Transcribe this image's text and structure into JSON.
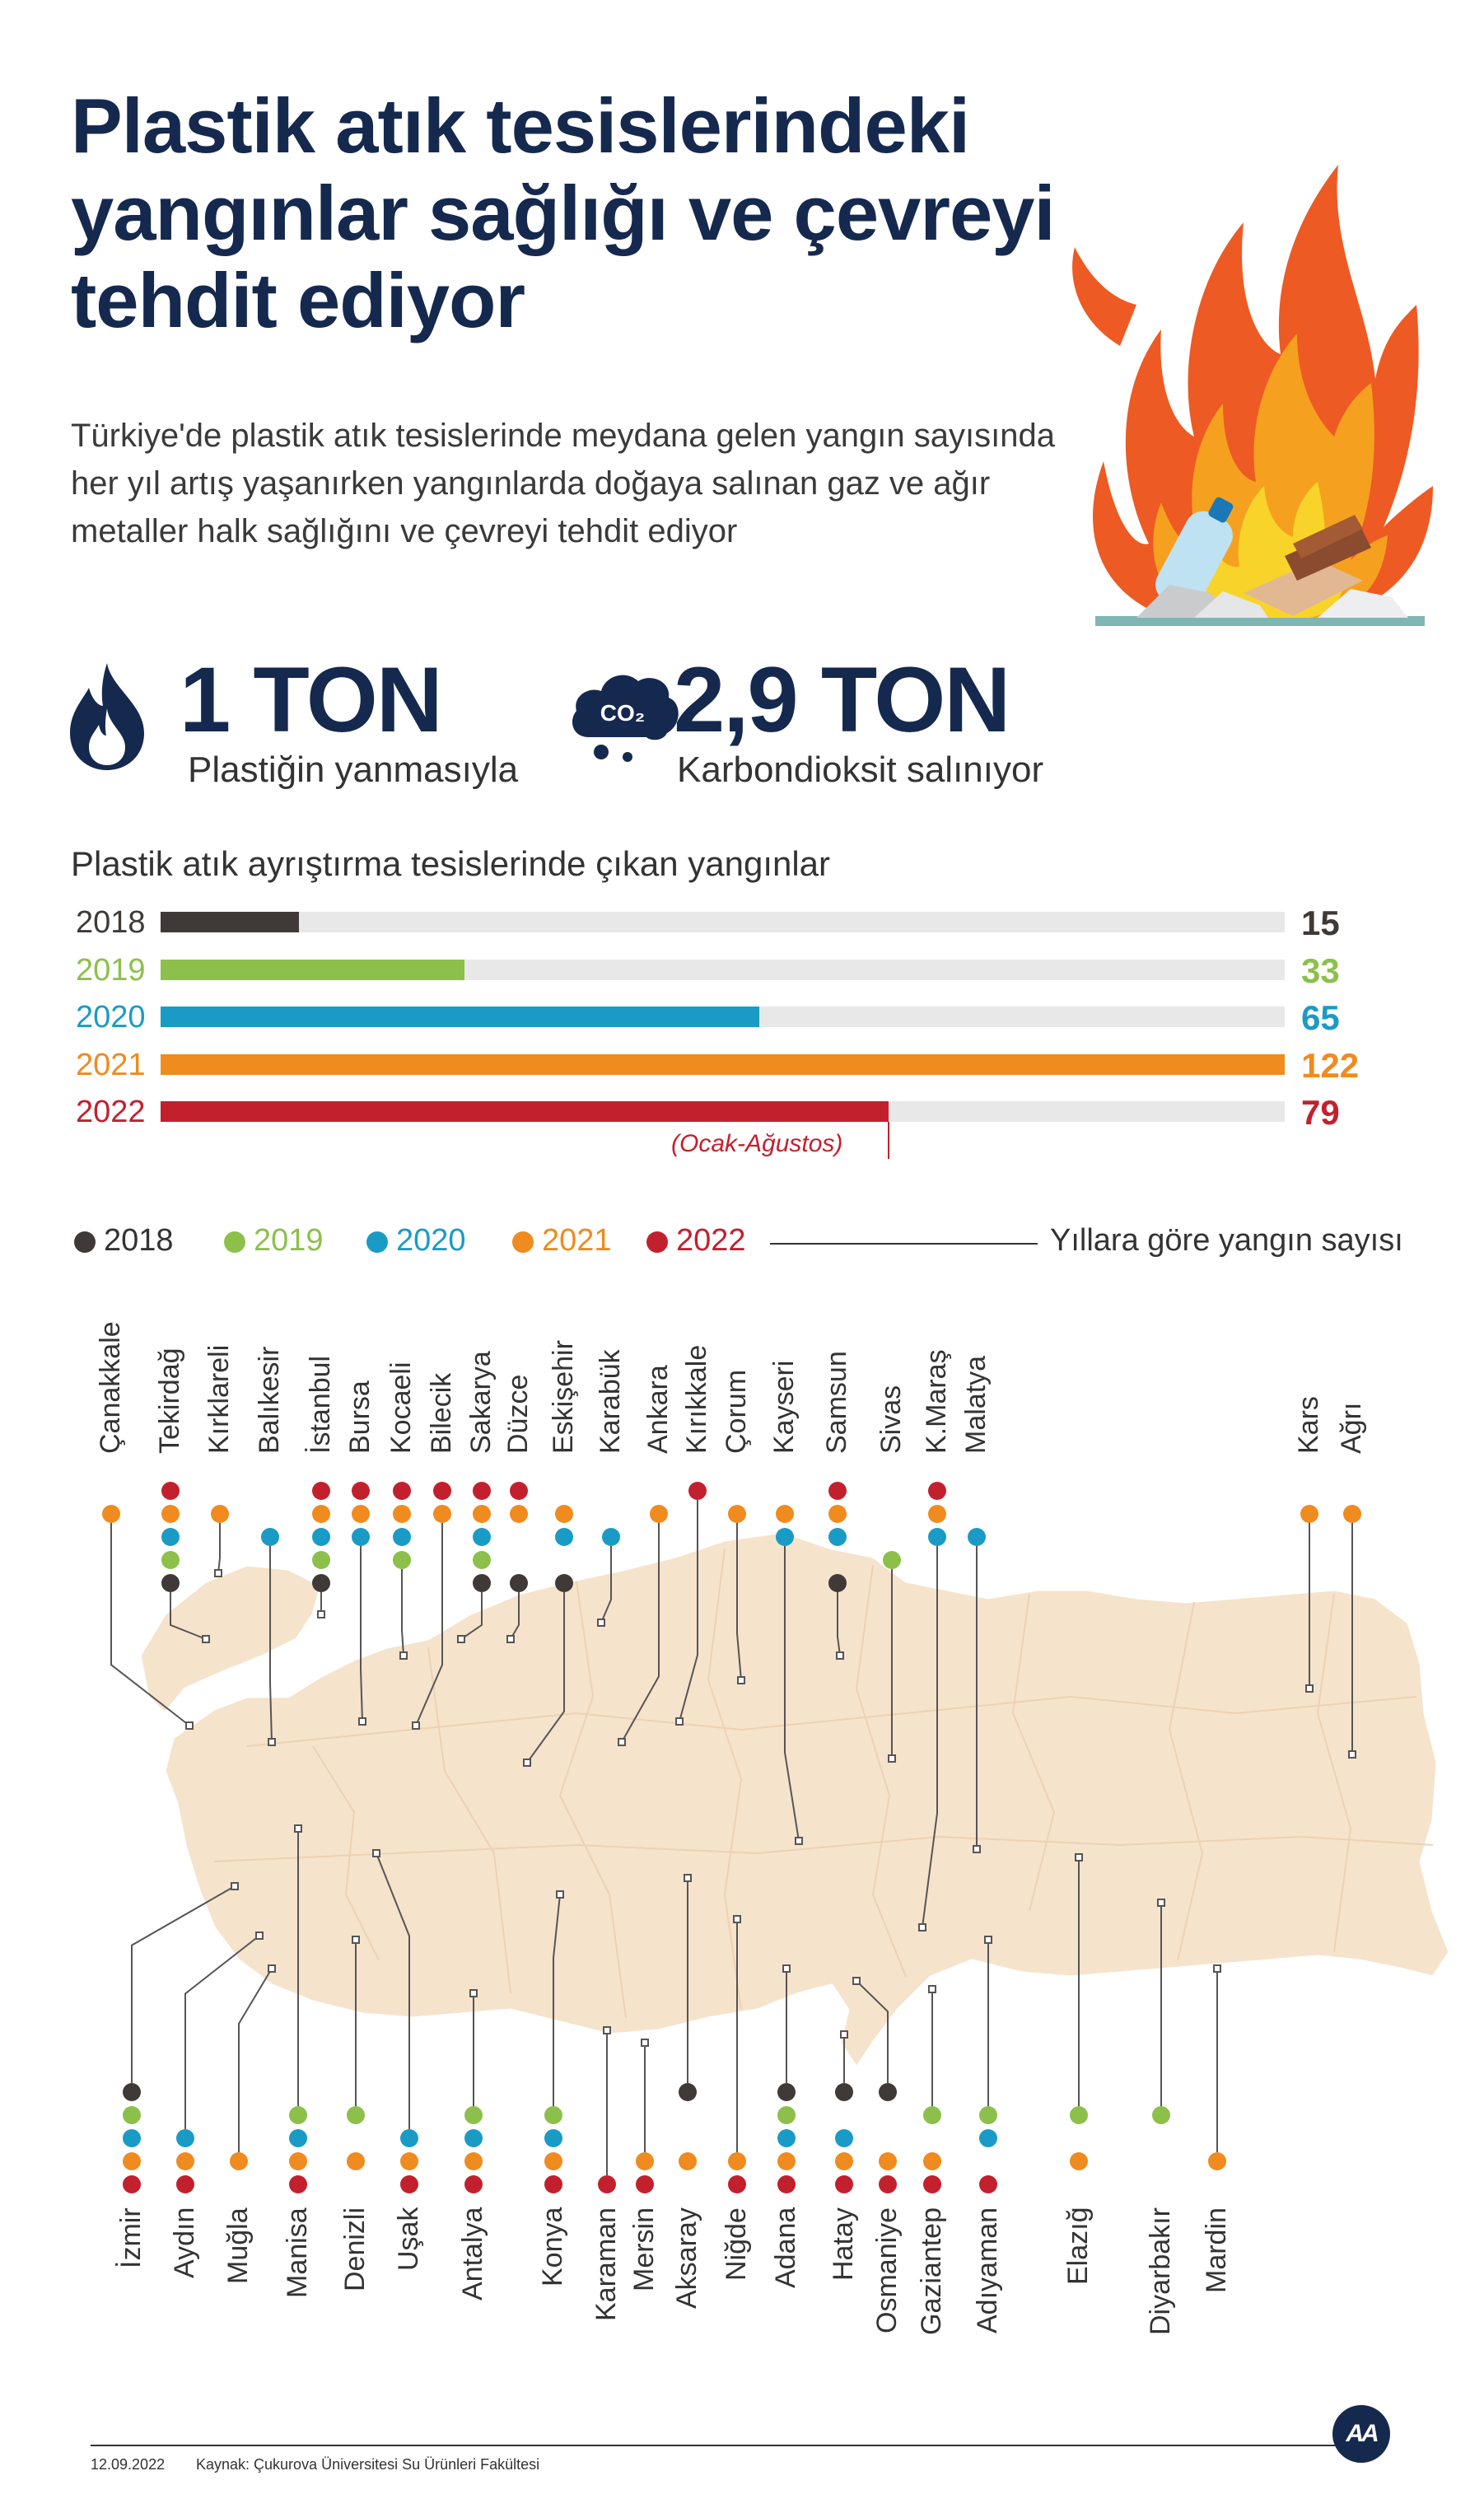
{
  "header": {
    "title_line1": "Plastik atık tesislerindeki",
    "title_line2": "yangınlar sağlığı ve çevreyi",
    "title_line3": "tehdit ediyor",
    "description": "Türkiye'de plastik atık tesislerinde meydana gelen yangın sayısında her yıl artış yaşanırken yangınlarda doğaya salınan gaz ve ağır metaller halk sağlığını ve çevreyi tehdit ediyor"
  },
  "stats": [
    {
      "value": "1 TON",
      "label": "Plastiğin yanmasıyla",
      "icon": "flame-icon"
    },
    {
      "value": "2,9 TON",
      "label": "Karbondioksit salınıyor",
      "icon": "co2-cloud-icon",
      "icon_text": "CO₂"
    }
  ],
  "colors": {
    "2018": "#3f3a38",
    "2019": "#8cc04b",
    "2020": "#1a9bc5",
    "2021": "#ef8b1f",
    "2022": "#c3202e",
    "track": "#e8e8e8",
    "title": "#15294f",
    "map": "#f6e3cc"
  },
  "chart_data": {
    "type": "bar",
    "title": "Plastik atık ayrıştırma tesislerinde çıkan yangınlar",
    "categories": [
      "2018",
      "2019",
      "2020",
      "2021",
      "2022"
    ],
    "values": [
      15,
      33,
      65,
      122,
      79
    ],
    "max": 122,
    "annotation": "(Ocak-Ağustos)"
  },
  "legend": {
    "years": [
      "2018",
      "2019",
      "2020",
      "2021",
      "2022"
    ],
    "label": "Yıllara göre yangın sayısı"
  },
  "map": {
    "top_provinces": [
      {
        "name": "Çanakkale",
        "years": [
          "2021"
        ]
      },
      {
        "name": "Tekirdağ",
        "years": [
          "2022",
          "2021",
          "2020",
          "2019",
          "2018"
        ]
      },
      {
        "name": "Kırklareli",
        "years": [
          "2021"
        ]
      },
      {
        "name": "Balıkesir",
        "years": [
          "2020"
        ]
      },
      {
        "name": "İstanbul",
        "years": [
          "2022",
          "2021",
          "2020",
          "2019",
          "2018"
        ]
      },
      {
        "name": "Bursa",
        "years": [
          "2022",
          "2021",
          "2020"
        ]
      },
      {
        "name": "Kocaeli",
        "years": [
          "2022",
          "2021",
          "2020",
          "2019"
        ]
      },
      {
        "name": "Bilecik",
        "years": [
          "2022",
          "2021"
        ]
      },
      {
        "name": "Sakarya",
        "years": [
          "2022",
          "2021",
          "2020",
          "2019",
          "2018"
        ]
      },
      {
        "name": "Düzce",
        "years": [
          "2022",
          "2021",
          "2018"
        ]
      },
      {
        "name": "Eskişehir",
        "years": [
          "2021",
          "2020",
          "2018"
        ]
      },
      {
        "name": "Karabük",
        "years": [
          "2020"
        ]
      },
      {
        "name": "Ankara",
        "years": [
          "2021"
        ]
      },
      {
        "name": "Kırıkkale",
        "years": [
          "2022"
        ]
      },
      {
        "name": "Çorum",
        "years": [
          "2021"
        ]
      },
      {
        "name": "Kayseri",
        "years": [
          "2021",
          "2020"
        ]
      },
      {
        "name": "Samsun",
        "years": [
          "2022",
          "2021",
          "2020",
          "2018"
        ]
      },
      {
        "name": "Sivas",
        "years": [
          "2019"
        ]
      },
      {
        "name": "K.Maraş",
        "years": [
          "2022",
          "2021",
          "2020"
        ]
      },
      {
        "name": "Malatya",
        "years": [
          "2020"
        ]
      },
      {
        "name": "Kars",
        "years": [
          "2021"
        ]
      },
      {
        "name": "Ağrı",
        "years": [
          "2021"
        ]
      }
    ],
    "bottom_provinces": [
      {
        "name": "İzmir",
        "years": [
          "2018",
          "2019",
          "2020",
          "2021",
          "2022"
        ]
      },
      {
        "name": "Aydın",
        "years": [
          "2020",
          "2021",
          "2022"
        ]
      },
      {
        "name": "Muğla",
        "years": [
          "2021"
        ]
      },
      {
        "name": "Manisa",
        "years": [
          "2019",
          "2020",
          "2021",
          "2022"
        ]
      },
      {
        "name": "Denizli",
        "years": [
          "2019",
          "2021"
        ]
      },
      {
        "name": "Uşak",
        "years": [
          "2020",
          "2021",
          "2022"
        ]
      },
      {
        "name": "Antalya",
        "years": [
          "2019",
          "2020",
          "2021",
          "2022"
        ]
      },
      {
        "name": "Konya",
        "years": [
          "2019",
          "2020",
          "2021",
          "2022"
        ]
      },
      {
        "name": "Karaman",
        "years": [
          "2022"
        ]
      },
      {
        "name": "Mersin",
        "years": [
          "2021",
          "2022"
        ]
      },
      {
        "name": "Aksaray",
        "years": [
          "2018",
          "2021"
        ]
      },
      {
        "name": "Niğde",
        "years": [
          "2021",
          "2022"
        ]
      },
      {
        "name": "Adana",
        "years": [
          "2018",
          "2019",
          "2020",
          "2021",
          "2022"
        ]
      },
      {
        "name": "Hatay",
        "years": [
          "2018",
          "2020",
          "2021",
          "2022"
        ]
      },
      {
        "name": "Osmaniye",
        "years": [
          "2018",
          "2021",
          "2022"
        ]
      },
      {
        "name": "Gaziantep",
        "years": [
          "2019",
          "2021",
          "2022"
        ]
      },
      {
        "name": "Adıyaman",
        "years": [
          "2019",
          "2020",
          "2022"
        ]
      },
      {
        "name": "Elazığ",
        "years": [
          "2019",
          "2021"
        ]
      },
      {
        "name": "Diyarbakır",
        "years": [
          "2019"
        ]
      },
      {
        "name": "Mardin",
        "years": [
          "2021"
        ]
      }
    ]
  },
  "footer": {
    "date": "12.09.2022",
    "source": "Kaynak: Çukurova Üniversitesi Su Ürünleri Fakültesi",
    "logo_text": "AA"
  }
}
